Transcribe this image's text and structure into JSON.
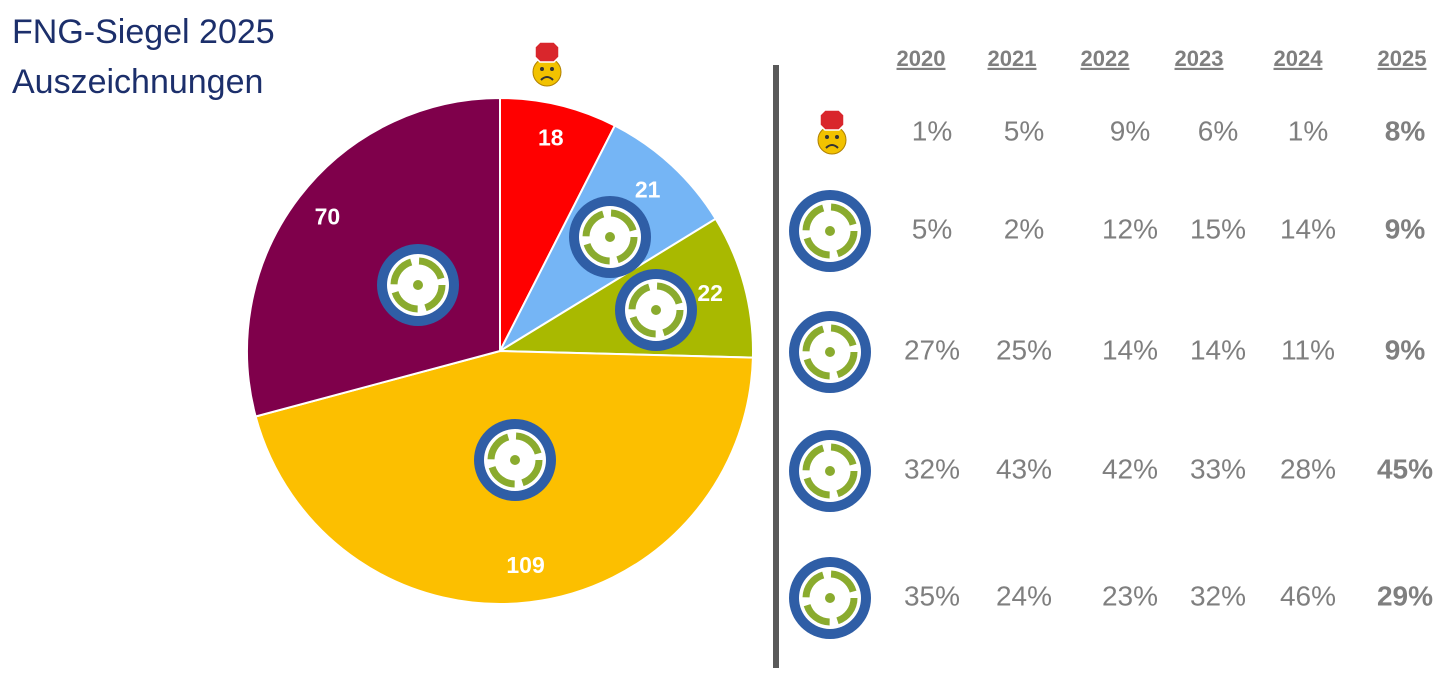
{
  "chart_data": {
    "type": "pie",
    "title": "FNG-Siegel 2025",
    "subtitle": "Auszeichnungen",
    "values": [
      18,
      21,
      22,
      109,
      70
    ],
    "colors": [
      "#ff0000",
      "#75b5f5",
      "#a9b900",
      "#fcbf00",
      "#7f004b"
    ]
  },
  "table": {
    "columns": [
      "2020",
      "2021",
      "2022",
      "2023",
      "2024",
      "2025"
    ],
    "rows": [
      [
        "1%",
        "5%",
        "9%",
        "6%",
        "1%",
        "8%"
      ],
      [
        "5%",
        "2%",
        "12%",
        "15%",
        "14%",
        "9%"
      ],
      [
        "27%",
        "25%",
        "14%",
        "14%",
        "11%",
        "9%"
      ],
      [
        "32%",
        "43%",
        "42%",
        "33%",
        "28%",
        "45%"
      ],
      [
        "35%",
        "24%",
        "23%",
        "32%",
        "46%",
        "29%"
      ]
    ]
  }
}
